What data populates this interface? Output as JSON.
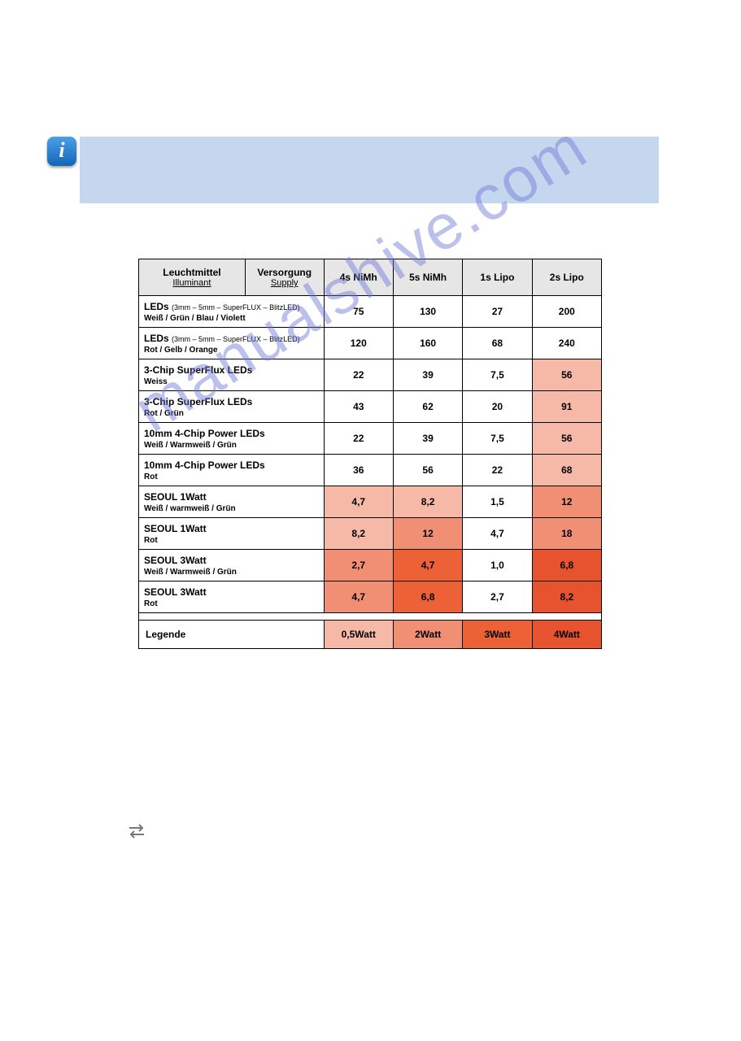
{
  "colors": {
    "banner_bg": "#c5d7ee",
    "header_bg": "#e6e6e6",
    "heat_0_5w": "#f6b9a8",
    "heat_2w": "#f18f75",
    "heat_3w": "#ec6236",
    "heat_4w": "#e8532f",
    "watermark": "#6d76d8"
  },
  "watermark_text": "manualshive.com",
  "table": {
    "col_widths_pct": [
      23,
      17,
      15,
      15,
      15,
      15
    ],
    "headers": [
      {
        "main": "Leuchtmittel",
        "sub": "Illuminant"
      },
      {
        "main": "Versorgung",
        "sub": "Supply"
      },
      {
        "main": "4s NiMh"
      },
      {
        "main": "5s NiMh"
      },
      {
        "main": "1s Lipo"
      },
      {
        "main": "2s Lipo"
      }
    ],
    "rows": [
      {
        "label_main": "LEDs",
        "label_small": "(3mm – 5mm – SuperFLUX – BlitzLED)",
        "label_sub": "Weiß / Grün / Blau / Violett",
        "cells": [
          {
            "v": "75"
          },
          {
            "v": "130"
          },
          {
            "v": "27"
          },
          {
            "v": "200"
          }
        ]
      },
      {
        "label_main": "LEDs",
        "label_small": "(3mm – 5mm – SuperFLUX – BlitzLED)",
        "label_sub": "Rot / Gelb / Orange",
        "cells": [
          {
            "v": "120"
          },
          {
            "v": "160"
          },
          {
            "v": "68"
          },
          {
            "v": "240"
          }
        ]
      },
      {
        "label_main": "3-Chip SuperFlux LEDs",
        "label_sub": "Weiss",
        "cells": [
          {
            "v": "22"
          },
          {
            "v": "39"
          },
          {
            "v": "7,5"
          },
          {
            "v": "56",
            "bg": "#f6b9a8"
          }
        ]
      },
      {
        "label_main": "3-Chip SuperFlux LEDs",
        "label_sub": "Rot / Grün",
        "cells": [
          {
            "v": "43"
          },
          {
            "v": "62"
          },
          {
            "v": "20"
          },
          {
            "v": "91",
            "bg": "#f6b9a8"
          }
        ]
      },
      {
        "label_main": "10mm 4-Chip Power LEDs",
        "label_sub": "Weiß / Warmweiß / Grün",
        "cells": [
          {
            "v": "22"
          },
          {
            "v": "39"
          },
          {
            "v": "7,5"
          },
          {
            "v": "56",
            "bg": "#f6b9a8"
          }
        ]
      },
      {
        "label_main": "10mm 4-Chip Power LEDs",
        "label_sub": "Rot",
        "cells": [
          {
            "v": "36"
          },
          {
            "v": "56"
          },
          {
            "v": "22"
          },
          {
            "v": "68",
            "bg": "#f6b9a8"
          }
        ]
      },
      {
        "label_main": "SEOUL 1Watt",
        "label_sub": "Weiß / warmweiß / Grün",
        "cells": [
          {
            "v": "4,7",
            "bg": "#f6b9a8"
          },
          {
            "v": "8,2",
            "bg": "#f6b9a8"
          },
          {
            "v": "1,5"
          },
          {
            "v": "12",
            "bg": "#f18f75"
          }
        ]
      },
      {
        "label_main": "SEOUL 1Watt",
        "label_sub": "Rot",
        "cells": [
          {
            "v": "8,2",
            "bg": "#f6b9a8"
          },
          {
            "v": "12",
            "bg": "#f18f75"
          },
          {
            "v": "4,7"
          },
          {
            "v": "18",
            "bg": "#f18f75"
          }
        ]
      },
      {
        "label_main": "SEOUL 3Watt",
        "label_sub": "Weiß / Warmweiß / Grün",
        "cells": [
          {
            "v": "2,7",
            "bg": "#f18f75"
          },
          {
            "v": "4,7",
            "bg": "#ec6236"
          },
          {
            "v": "1,0"
          },
          {
            "v": "6,8",
            "bg": "#e8532f"
          }
        ]
      },
      {
        "label_main": "SEOUL 3Watt",
        "label_sub": "Rot",
        "cells": [
          {
            "v": "4,7",
            "bg": "#f18f75"
          },
          {
            "v": "6,8",
            "bg": "#ec6236"
          },
          {
            "v": "2,7"
          },
          {
            "v": "8,2",
            "bg": "#e8532f"
          }
        ]
      }
    ],
    "legend": {
      "label": "Legende",
      "items": [
        {
          "text": "0,5Watt",
          "bg": "#f6b9a8"
        },
        {
          "text": "2Watt",
          "bg": "#f18f75"
        },
        {
          "text": "3Watt",
          "bg": "#ec6236"
        },
        {
          "text": "4Watt",
          "bg": "#e8532f"
        }
      ]
    }
  }
}
